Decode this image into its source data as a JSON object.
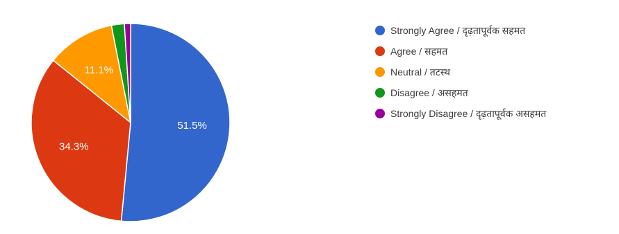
{
  "chart_data": {
    "type": "pie",
    "slices": [
      {
        "label": "Strongly Agree / दृढ़तापूर्वक सहमत",
        "value": 51.5,
        "color": "#3366CC",
        "data_label": "51.5%"
      },
      {
        "label": "Agree / सहमत",
        "value": 34.3,
        "color": "#DC3912",
        "data_label": "34.3%"
      },
      {
        "label": "Neutral / तटस्थ",
        "value": 11.1,
        "color": "#FF9900",
        "data_label": "11.1%"
      },
      {
        "label": "Disagree / असहमत",
        "value": 2.1,
        "color": "#109618",
        "data_label": ""
      },
      {
        "label": "Strongly Disagree / दृढ़तापूर्वक असहमत",
        "value": 1.0,
        "color": "#990099",
        "data_label": ""
      }
    ],
    "legend_position": "right",
    "start_angle_deg": 90,
    "direction": "clockwise"
  }
}
